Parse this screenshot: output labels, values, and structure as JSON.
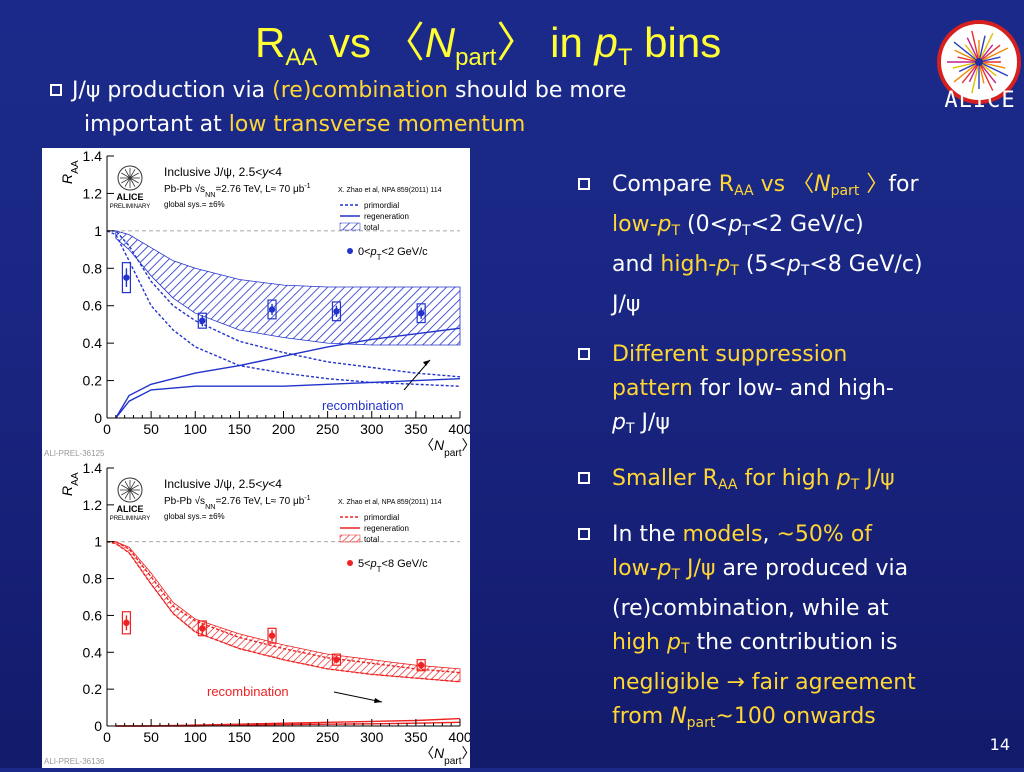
{
  "title": {
    "r": "R",
    "r_sub": "AA",
    "vs": " vs ",
    "lang": "〈",
    "n": "N",
    "n_sub": "part",
    "rang": "〉",
    "in_bins": " in ",
    "p": "p",
    "p_sub": "T",
    "bins": " bins"
  },
  "logo": {
    "text": "ALICE"
  },
  "top_bullet": {
    "l1_a": "J/ψ production via ",
    "l1_b": "(re)combination",
    "l1_c": " should be more",
    "l2_a": "important at ",
    "l2_b": "low transverse momentum"
  },
  "right_bullets": {
    "b1_a": "Compare ",
    "b1_r": "R",
    "b1_rsub": "AA",
    "b1_vs": " vs ",
    "b1_lang": "〈",
    "b1_n": "N",
    "b1_nsub": "part",
    "b1_rang": " 〉",
    "b1_for": "for",
    "b1_low": "low-",
    "b1_lowp": "p",
    "b1_lowt": "T",
    "b1_range1": "  (0<",
    "b1_p1": "p",
    "b1_t1": "T",
    "b1_range1b": "<2 GeV/c)",
    "b1_and": "and ",
    "b1_high": "high-",
    "b1_highp": "p",
    "b1_hight": "T",
    "b1_range2": " (5<",
    "b1_p2": "p",
    "b1_t2": "T",
    "b1_range2b": "<8 GeV/c)",
    "b1_jpsi": "J/ψ",
    "b2_a": "Different suppression",
    "b2_b": "pattern",
    "b2_c": " for low- and high-",
    "b2_p": "p",
    "b2_t": "T",
    "b2_d": " J/ψ",
    "b3_a": "Smaller R",
    "b3_asub": "AA",
    "b3_b": " for high ",
    "b3_p": "p",
    "b3_t": "T",
    "b3_c": " J/ψ",
    "b4_a": "In the ",
    "b4_models": "models",
    "b4_b": ", ",
    "b4_pct": "~50% of",
    "b4_low": "low-",
    "b4_lp": "p",
    "b4_lt": "T",
    "b4_jpsi": " J/ψ",
    "b4_c": " are produced via",
    "b4_d": "(re)combination, while at",
    "b4_high": "high ",
    "b4_hp": "p",
    "b4_ht": "T",
    "b4_e": " the contribution is",
    "b4_negl": "negligible ",
    "b4_arrow": "→",
    "b4_fair": " fair agreement",
    "b4_from": "from ",
    "b4_n": "N",
    "b4_nsub": "part",
    "b4_f": "~100 onwards"
  },
  "page_number": "14",
  "colors": {
    "title": "#ffff33",
    "accent": "#ffd633",
    "blue_model": "#2233cc",
    "red_model": "#ee2222"
  },
  "chart_data": [
    {
      "type": "scatter",
      "ylabel": "R",
      "ylabel_sub": "AA",
      "xlabel_lang": "〈",
      "xlabel_n": "N",
      "xlabel_sub": "part",
      "xlabel_rang": "〉",
      "xlim": [
        0,
        400
      ],
      "ylim": [
        0,
        1.4
      ],
      "xticks": [
        0,
        50,
        100,
        150,
        200,
        250,
        300,
        350,
        400
      ],
      "yticks": [
        0,
        0.2,
        0.4,
        0.6,
        0.8,
        1,
        1.2,
        1.4
      ],
      "legend_title_a": "Inclusive J/ψ, 2.5<",
      "legend_title_y": "y",
      "legend_title_b": "<4",
      "legend_line2": "Pb-Pb √s",
      "legend_line2_sub": "NN",
      "legend_line2_b": "=2.76 TeV, L≈ 70 μb",
      "legend_line2_sup": "-1",
      "global_sys": "global sys.= ±6%",
      "model_ref": "X. Zhao et al, NPA 859(2011) 114",
      "legend_primordial": "primordial",
      "legend_regeneration": "regeneration",
      "legend_total": "total",
      "logo_a": "ALICE",
      "logo_b": "PRELIMINARY",
      "data_label_a": "0<",
      "data_label_p": "p",
      "data_label_t": "T",
      "data_label_b": "<2 GeV/c",
      "annotation": "recombination",
      "figure_id": "ALI-PREL-36125",
      "series_points": {
        "x": [
          22,
          108,
          187,
          260,
          356
        ],
        "y": [
          0.75,
          0.52,
          0.58,
          0.57,
          0.56
        ],
        "sys": [
          0.08,
          0.04,
          0.05,
          0.05,
          0.05
        ],
        "stat": [
          0.05,
          0.03,
          0.03,
          0.03,
          0.03
        ]
      },
      "band": {
        "x": [
          10,
          25,
          50,
          75,
          100,
          150,
          200,
          250,
          300,
          350,
          400
        ],
        "upper": [
          1.0,
          0.98,
          0.91,
          0.84,
          0.8,
          0.74,
          0.71,
          0.7,
          0.7,
          0.7,
          0.7
        ],
        "lower": [
          0.96,
          0.9,
          0.76,
          0.64,
          0.56,
          0.47,
          0.43,
          0.4,
          0.39,
          0.39,
          0.39
        ]
      },
      "primordial_upper": {
        "x": [
          0,
          10,
          25,
          50,
          75,
          100,
          150,
          200,
          250,
          300,
          350,
          400
        ],
        "y": [
          1.0,
          1.0,
          0.92,
          0.73,
          0.6,
          0.52,
          0.41,
          0.35,
          0.3,
          0.27,
          0.24,
          0.22
        ]
      },
      "primordial_lower": {
        "x": [
          0,
          10,
          25,
          50,
          75,
          100,
          150,
          200,
          250,
          300,
          350,
          400
        ],
        "y": [
          1.0,
          0.98,
          0.84,
          0.6,
          0.47,
          0.38,
          0.28,
          0.24,
          0.21,
          0.19,
          0.18,
          0.17
        ]
      },
      "regen_upper": {
        "x": [
          10,
          25,
          50,
          100,
          150,
          200,
          250,
          300,
          350,
          400
        ],
        "y": [
          0.0,
          0.12,
          0.18,
          0.24,
          0.28,
          0.33,
          0.38,
          0.42,
          0.45,
          0.48
        ]
      },
      "regen_lower": {
        "x": [
          10,
          25,
          50,
          100,
          150,
          200,
          250,
          300,
          350,
          400
        ],
        "y": [
          0.0,
          0.09,
          0.15,
          0.17,
          0.17,
          0.17,
          0.18,
          0.19,
          0.2,
          0.21
        ]
      },
      "color": "#2233cc"
    },
    {
      "type": "scatter",
      "ylabel": "R",
      "ylabel_sub": "AA",
      "xlabel_lang": "〈",
      "xlabel_n": "N",
      "xlabel_sub": "part",
      "xlabel_rang": "〉",
      "xlim": [
        0,
        400
      ],
      "ylim": [
        0,
        1.4
      ],
      "xticks": [
        0,
        50,
        100,
        150,
        200,
        250,
        300,
        350,
        400
      ],
      "yticks": [
        0,
        0.2,
        0.4,
        0.6,
        0.8,
        1,
        1.2,
        1.4
      ],
      "legend_title_a": "Inclusive J/ψ, 2.5<",
      "legend_title_y": "y",
      "legend_title_b": "<4",
      "legend_line2": "Pb-Pb √s",
      "legend_line2_sub": "NN",
      "legend_line2_b": "=2.76 TeV, L≈ 70 μb",
      "legend_line2_sup": "-1",
      "global_sys": "global sys.= ±6%",
      "model_ref": "X. Zhao et al, NPA 859(2011) 114",
      "legend_primordial": "primordial",
      "legend_regeneration": "regeneration",
      "legend_total": "total",
      "logo_a": "ALICE",
      "logo_b": "PRELIMINARY",
      "data_label_a": "5<",
      "data_label_p": "p",
      "data_label_t": "T",
      "data_label_b": "<8 GeV/c",
      "annotation": "recombination",
      "figure_id": "ALI-PREL-36136",
      "series_points": {
        "x": [
          22,
          108,
          187,
          260,
          356
        ],
        "y": [
          0.56,
          0.53,
          0.49,
          0.36,
          0.33
        ],
        "sys": [
          0.06,
          0.04,
          0.04,
          0.03,
          0.03
        ],
        "stat": [
          0.04,
          0.03,
          0.03,
          0.02,
          0.02
        ]
      },
      "band": {
        "x": [
          10,
          25,
          50,
          75,
          100,
          150,
          200,
          250,
          300,
          350,
          400
        ],
        "upper": [
          1.0,
          0.97,
          0.83,
          0.67,
          0.58,
          0.5,
          0.44,
          0.39,
          0.36,
          0.33,
          0.31
        ],
        "lower": [
          0.99,
          0.94,
          0.77,
          0.61,
          0.51,
          0.42,
          0.36,
          0.31,
          0.28,
          0.26,
          0.24
        ]
      },
      "primordial_upper": {
        "x": [
          0,
          10,
          25,
          50,
          75,
          100,
          150,
          200,
          250,
          300,
          350,
          400
        ],
        "y": [
          1.0,
          1.0,
          0.96,
          0.81,
          0.65,
          0.57,
          0.48,
          0.42,
          0.37,
          0.34,
          0.31,
          0.29
        ]
      },
      "primordial_lower": {
        "x": [
          0,
          10,
          25,
          50,
          75,
          100,
          150,
          200,
          250,
          300,
          350,
          400
        ],
        "y": [
          1.0,
          0.99,
          0.94,
          0.77,
          0.61,
          0.51,
          0.42,
          0.36,
          0.31,
          0.28,
          0.26,
          0.24
        ]
      },
      "regen_upper": {
        "x": [
          10,
          25,
          50,
          100,
          150,
          200,
          250,
          300,
          350,
          400
        ],
        "y": [
          0.0,
          0.0,
          0.0,
          0.005,
          0.01,
          0.015,
          0.02,
          0.025,
          0.03,
          0.04
        ]
      },
      "regen_lower": {
        "x": [
          10,
          25,
          50,
          100,
          150,
          200,
          250,
          300,
          350,
          400
        ],
        "y": [
          0.0,
          0.0,
          0.0,
          0.0,
          0.005,
          0.008,
          0.01,
          0.012,
          0.015,
          0.02
        ]
      },
      "color": "#ee2222"
    }
  ]
}
